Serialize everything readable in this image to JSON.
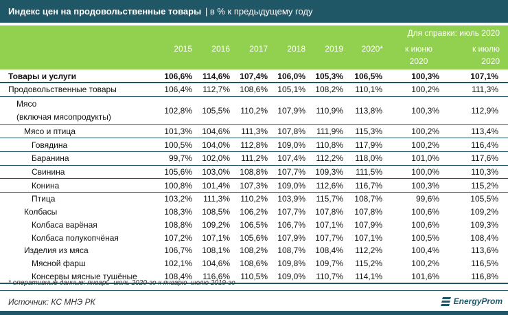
{
  "title": {
    "main": "Индекс цен на продовольственные товары",
    "sep": "|",
    "sub": "в % к предыдущему году"
  },
  "header": {
    "ref_label": "Для справки: июль 2020",
    "years": [
      "2015",
      "2016",
      "2017",
      "2018",
      "2019",
      "2020*"
    ],
    "ref_cols": [
      [
        "к июню",
        "2020"
      ],
      [
        "к июлю",
        "2020"
      ]
    ]
  },
  "rows": [
    {
      "name": "Товары и услуги",
      "values": [
        "106,6%",
        "114,6%",
        "107,4%",
        "106,0%",
        "105,3%",
        "106,5%",
        "100,3%",
        "107,1%"
      ]
    },
    {
      "name": "Продовольственные товары",
      "values": [
        "106,4%",
        "112,7%",
        "108,6%",
        "105,1%",
        "108,2%",
        "110,1%",
        "100,2%",
        "111,3%"
      ]
    },
    {
      "name": "Мясо",
      "name2": "(включая мясопродукты)",
      "values": [
        "102,8%",
        "105,5%",
        "110,2%",
        "107,9%",
        "110,9%",
        "113,8%",
        "100,3%",
        "112,9%"
      ]
    },
    {
      "name": "Мясо и птица",
      "values": [
        "101,3%",
        "104,6%",
        "111,3%",
        "107,8%",
        "111,9%",
        "115,3%",
        "100,2%",
        "113,4%"
      ]
    },
    {
      "name": "Говядина",
      "values": [
        "100,5%",
        "104,0%",
        "112,8%",
        "109,0%",
        "110,8%",
        "117,9%",
        "100,2%",
        "116,4%"
      ]
    },
    {
      "name": "Баранина",
      "values": [
        "99,7%",
        "102,0%",
        "111,2%",
        "107,4%",
        "112,2%",
        "118,0%",
        "101,0%",
        "117,6%"
      ]
    },
    {
      "name": "Свинина",
      "values": [
        "105,6%",
        "103,0%",
        "108,8%",
        "107,7%",
        "109,3%",
        "111,5%",
        "100,0%",
        "110,3%"
      ]
    },
    {
      "name": "Конина",
      "values": [
        "100,8%",
        "101,4%",
        "107,3%",
        "109,0%",
        "112,6%",
        "116,7%",
        "100,3%",
        "115,2%"
      ]
    },
    {
      "name": "Птица",
      "values": [
        "103,2%",
        "111,3%",
        "110,2%",
        "103,9%",
        "115,7%",
        "108,7%",
        "99,6%",
        "105,5%"
      ]
    },
    {
      "name": "Колбасы",
      "values": [
        "108,3%",
        "108,5%",
        "106,2%",
        "107,7%",
        "107,8%",
        "107,8%",
        "100,6%",
        "109,2%"
      ]
    },
    {
      "name": "Колбаса варёная",
      "values": [
        "108,8%",
        "109,2%",
        "106,5%",
        "106,7%",
        "107,1%",
        "107,9%",
        "100,6%",
        "109,3%"
      ]
    },
    {
      "name": "Колбаса полукопчёная",
      "values": [
        "107,2%",
        "107,1%",
        "105,6%",
        "107,9%",
        "107,7%",
        "107,1%",
        "100,5%",
        "108,4%"
      ]
    },
    {
      "name": "Изделия из мяса",
      "values": [
        "106,7%",
        "108,1%",
        "108,2%",
        "108,7%",
        "108,4%",
        "112,2%",
        "100,4%",
        "113,6%"
      ]
    },
    {
      "name": "Мясной фарш",
      "values": [
        "102,1%",
        "104,6%",
        "108,6%",
        "109,8%",
        "109,7%",
        "115,2%",
        "100,2%",
        "116,5%"
      ]
    },
    {
      "name": "Консервы мясные тушёные",
      "values": [
        "108,4%",
        "116,6%",
        "110,5%",
        "109,0%",
        "110,7%",
        "114,1%",
        "101,6%",
        "116,8%"
      ]
    }
  ],
  "footnote": "* оперативные данные: январь–июль 2020-го к январю–июлю 2019-го",
  "source": "Источник: КС МНЭ РК",
  "logo": "EnergyProm",
  "colors": {
    "title_bg": "#1f5766",
    "header_bg": "#92d050"
  }
}
